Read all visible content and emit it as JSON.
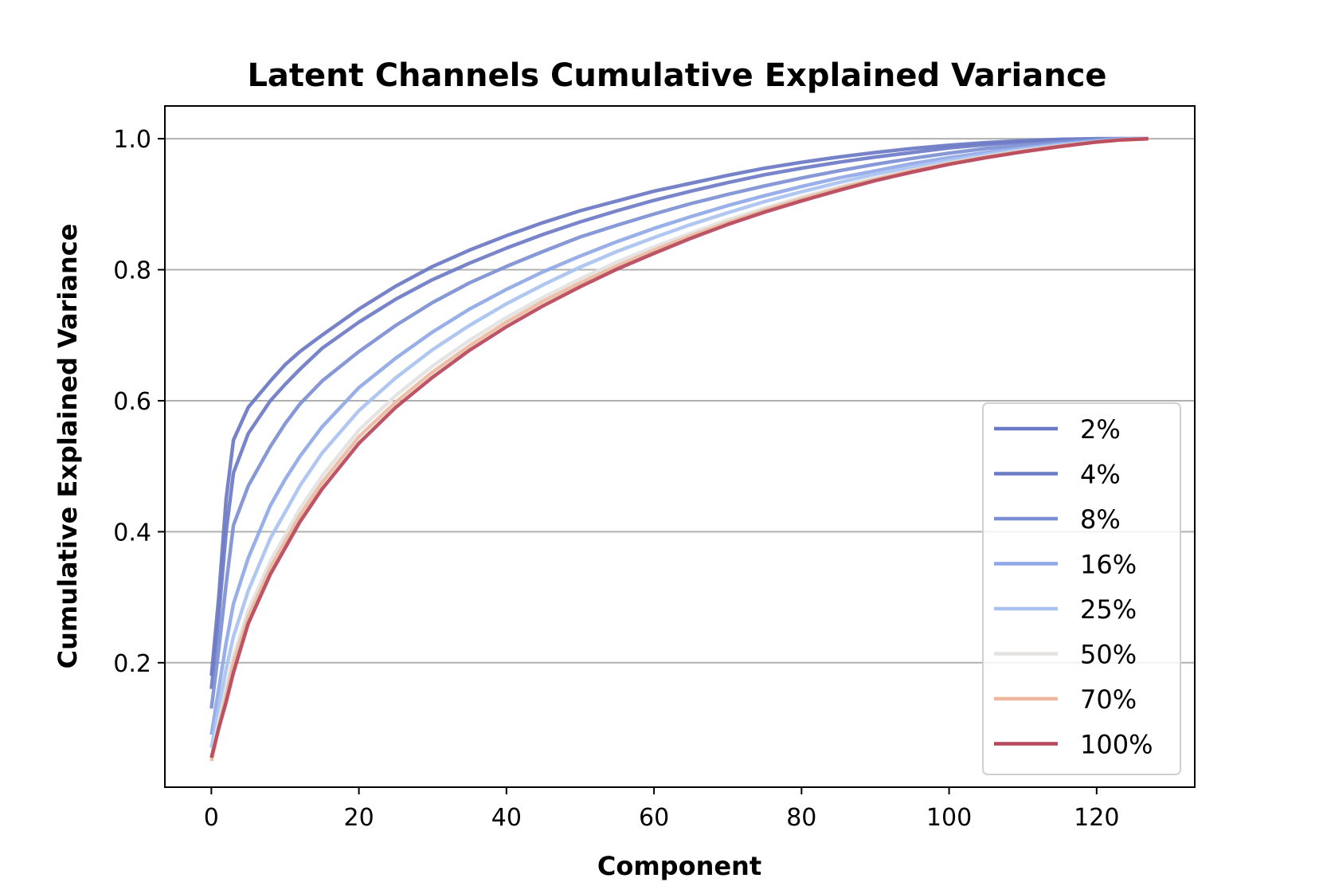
{
  "chart_data": {
    "type": "line",
    "title": "Latent Channels Cumulative Explained Variance",
    "xlabel": "Component",
    "ylabel": "Cumulative Explained Variance",
    "xlim": [
      -6.3,
      133.3
    ],
    "ylim": [
      0.01,
      1.05
    ],
    "xticks": [
      0,
      20,
      40,
      60,
      80,
      100,
      120
    ],
    "yticks": [
      0.2,
      0.4,
      0.6,
      0.8,
      1.0
    ],
    "ytick_labels": [
      "0.2",
      "0.4",
      "0.6",
      "0.8",
      "1.0"
    ],
    "grid": "y",
    "legend_position": "lower-right",
    "x": [
      0,
      1,
      2,
      3,
      5,
      8,
      10,
      12,
      15,
      20,
      25,
      30,
      35,
      40,
      45,
      50,
      55,
      60,
      65,
      70,
      75,
      80,
      85,
      90,
      95,
      100,
      105,
      110,
      115,
      120,
      123,
      127
    ],
    "series": [
      {
        "name": "2%",
        "color": "#6b78c4",
        "values": [
          0.18,
          0.3,
          0.45,
          0.54,
          0.59,
          0.63,
          0.655,
          0.675,
          0.7,
          0.74,
          0.775,
          0.805,
          0.83,
          0.852,
          0.872,
          0.89,
          0.905,
          0.92,
          0.932,
          0.944,
          0.955,
          0.964,
          0.972,
          0.979,
          0.985,
          0.99,
          0.994,
          0.997,
          0.999,
          1.0,
          1.0,
          1.0
        ]
      },
      {
        "name": "4%",
        "color": "#6e7bc6",
        "values": [
          0.16,
          0.27,
          0.4,
          0.49,
          0.55,
          0.6,
          0.625,
          0.648,
          0.68,
          0.72,
          0.755,
          0.785,
          0.81,
          0.833,
          0.854,
          0.873,
          0.89,
          0.906,
          0.92,
          0.933,
          0.945,
          0.955,
          0.964,
          0.972,
          0.979,
          0.986,
          0.991,
          0.995,
          0.998,
          1.0,
          1.0,
          1.0
        ]
      },
      {
        "name": "8%",
        "color": "#7d8fd4",
        "values": [
          0.13,
          0.22,
          0.32,
          0.41,
          0.47,
          0.53,
          0.565,
          0.595,
          0.63,
          0.675,
          0.715,
          0.75,
          0.78,
          0.805,
          0.828,
          0.85,
          0.868,
          0.885,
          0.901,
          0.915,
          0.928,
          0.94,
          0.951,
          0.961,
          0.97,
          0.978,
          0.985,
          0.99,
          0.995,
          0.999,
          1.0,
          1.0
        ]
      },
      {
        "name": "16%",
        "color": "#8fa8e8",
        "values": [
          0.09,
          0.16,
          0.23,
          0.29,
          0.36,
          0.44,
          0.48,
          0.515,
          0.56,
          0.62,
          0.665,
          0.705,
          0.74,
          0.77,
          0.797,
          0.821,
          0.843,
          0.863,
          0.881,
          0.898,
          0.913,
          0.927,
          0.94,
          0.951,
          0.962,
          0.971,
          0.979,
          0.986,
          0.992,
          0.997,
          0.999,
          1.0
        ]
      },
      {
        "name": "25%",
        "color": "#a9c2f0",
        "values": [
          0.07,
          0.13,
          0.19,
          0.24,
          0.31,
          0.39,
          0.43,
          0.47,
          0.52,
          0.585,
          0.635,
          0.678,
          0.715,
          0.748,
          0.777,
          0.804,
          0.828,
          0.849,
          0.869,
          0.887,
          0.904,
          0.919,
          0.933,
          0.946,
          0.957,
          0.967,
          0.976,
          0.984,
          0.991,
          0.996,
          0.999,
          1.0
        ]
      },
      {
        "name": "50%",
        "color": "#e4e2df",
        "values": [
          0.055,
          0.11,
          0.16,
          0.21,
          0.28,
          0.355,
          0.395,
          0.435,
          0.485,
          0.555,
          0.608,
          0.653,
          0.692,
          0.727,
          0.758,
          0.786,
          0.812,
          0.835,
          0.856,
          0.876,
          0.894,
          0.911,
          0.926,
          0.94,
          0.952,
          0.963,
          0.973,
          0.982,
          0.989,
          0.995,
          0.998,
          1.0
        ]
      },
      {
        "name": "70%",
        "color": "#eeb89e",
        "values": [
          0.05,
          0.1,
          0.15,
          0.2,
          0.27,
          0.345,
          0.385,
          0.425,
          0.475,
          0.545,
          0.598,
          0.644,
          0.684,
          0.72,
          0.752,
          0.78,
          0.806,
          0.83,
          0.852,
          0.872,
          0.891,
          0.908,
          0.924,
          0.938,
          0.951,
          0.962,
          0.972,
          0.981,
          0.989,
          0.995,
          0.998,
          1.0
        ]
      },
      {
        "name": "100%",
        "color": "#b5475a",
        "values": [
          0.055,
          0.1,
          0.14,
          0.185,
          0.26,
          0.335,
          0.375,
          0.415,
          0.465,
          0.535,
          0.59,
          0.636,
          0.677,
          0.713,
          0.745,
          0.774,
          0.801,
          0.825,
          0.848,
          0.869,
          0.888,
          0.905,
          0.921,
          0.936,
          0.949,
          0.961,
          0.971,
          0.98,
          0.988,
          0.995,
          0.998,
          1.0
        ]
      }
    ]
  }
}
